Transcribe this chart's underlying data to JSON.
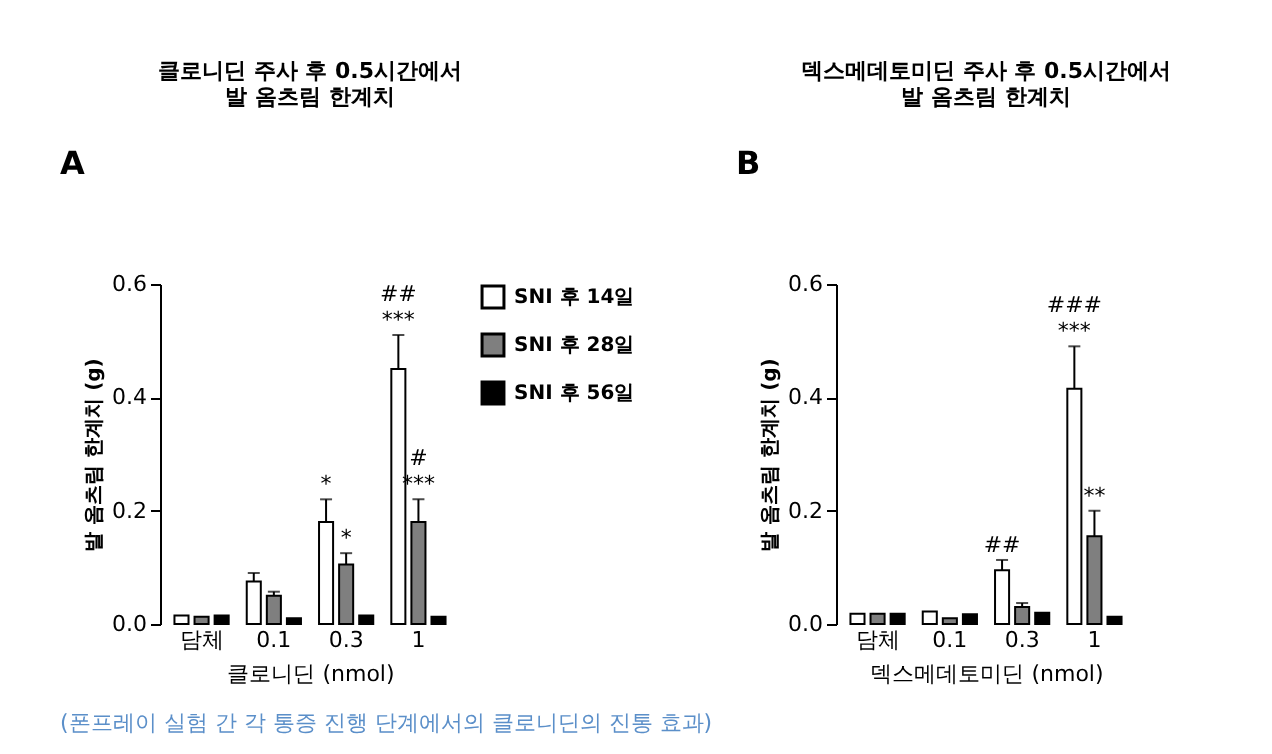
{
  "chart_data": [
    {
      "type": "bar",
      "title": "클로니딘 주사 후 0.5시간에서\n발 옴츠림 한계치",
      "xlabel": "클로니딘 (nmol)",
      "ylabel": "발 옴츠림 한계치 (g)",
      "categories": [
        "담체",
        "0.1",
        "0.3",
        "1"
      ],
      "series": [
        {
          "name": "SNI 후 14일",
          "color": "#ffffff",
          "values": [
            0.015,
            0.075,
            0.18,
            0.45
          ],
          "errors": [
            null,
            0.015,
            0.04,
            0.06
          ]
        },
        {
          "name": "SNI 후 28일",
          "color": "#7f7f7f",
          "values": [
            0.013,
            0.05,
            0.105,
            0.18
          ],
          "errors": [
            null,
            0.007,
            0.02,
            0.04
          ]
        },
        {
          "name": "SNI 후 56일",
          "color": "#000000",
          "values": [
            0.015,
            0.01,
            0.015,
            0.013
          ],
          "errors": [
            null,
            null,
            null,
            null
          ]
        }
      ],
      "ylim": [
        0,
        0.6
      ],
      "yticks": [
        {
          "value": 0,
          "label": "0.0"
        },
        {
          "value": 0.2,
          "label": "0.2"
        },
        {
          "value": 0.4,
          "label": "0.4"
        },
        {
          "value": 0.6,
          "label": "0.6"
        }
      ],
      "annotations": [
        "A",
        "*",
        "***",
        "##",
        {
          "text": "*",
          "x": "0.3",
          "y": 0.125
        },
        {
          "text": "***",
          "x": "1",
          "y": 0.22
        },
        {
          "text": "#",
          "x": "1",
          "y": 0.22
        }
      ],
      "grid": false,
      "legend": "right"
    },
    {
      "type": "bar",
      "title": "덱스메데토미딘 주사 후 0.5시간에서\n발 옴츠림 한계치",
      "xlabel": "덱스메데토미딘 (nmol)",
      "ylabel": "발 옴츠림 한계치 (g)",
      "categories": [
        "담체",
        "0.1",
        "0.3",
        "1"
      ],
      "series": [
        {
          "color": "#ffffff",
          "values": [
            0.018,
            0.022,
            0.095,
            0.415
          ],
          "errors": [
            null,
            null,
            0.018,
            0.075
          ]
        },
        {
          "color": "#7f7f7f",
          "values": [
            0.018,
            0.01,
            0.03,
            0.155
          ],
          "errors": [
            null,
            null,
            0.007,
            0.045
          ]
        },
        {
          "color": "#000000",
          "values": [
            0.018,
            0.017,
            0.02,
            0.013
          ],
          "errors": [
            null,
            null,
            null,
            null
          ]
        }
      ],
      "ylim": [
        0,
        0.6
      ],
      "yticks": [
        {
          "value": 0,
          "label": "0.0"
        },
        {
          "value": 0.2,
          "label": "0.2"
        },
        {
          "value": 0.4,
          "label": "0.4"
        },
        {
          "value": 0.6,
          "label": "0.6"
        }
      ],
      "annotations": [
        "B",
        "##",
        "***",
        "###",
        "(폰프레이 실험 간 각 통증 진행 단계에서의 클로니딘의 진통 효과)",
        {
          "text": "**",
          "x": "1",
          "y": 0.2
        }
      ],
      "grid": false,
      "legend": false
    }
  ]
}
